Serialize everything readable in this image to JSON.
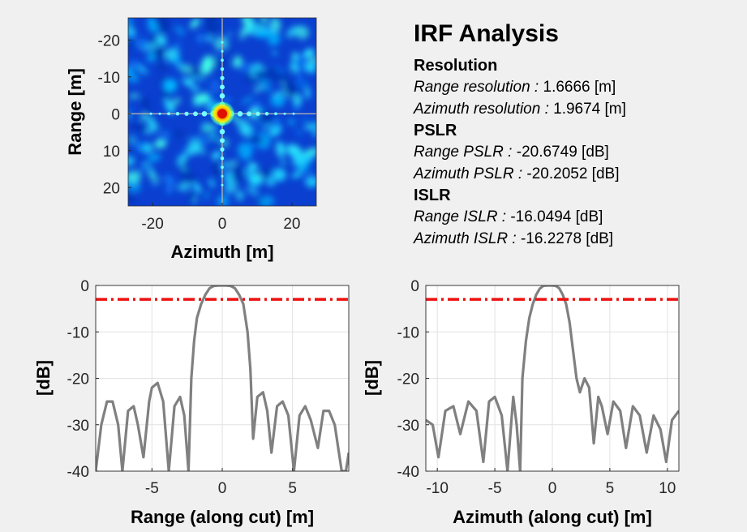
{
  "chart_data": [
    {
      "type": "heatmap",
      "xlabel": "Azimuth [m]",
      "ylabel": "Range [m]",
      "xlim": [
        -27,
        27
      ],
      "ylim": [
        -26,
        25
      ],
      "y_reversed": true,
      "xticks": [
        -20,
        0,
        20
      ],
      "yticks": [
        -20,
        -10,
        0,
        10,
        20
      ],
      "colormap": "jet",
      "peak": [
        0,
        0
      ]
    },
    {
      "type": "line",
      "xlabel": "Range (along cut) [m]",
      "ylabel": "[dB]",
      "xlim": [
        -9,
        9
      ],
      "ylim": [
        -40,
        0
      ],
      "xticks": [
        -5,
        0,
        5
      ],
      "yticks": [
        0,
        -10,
        -20,
        -30,
        -40
      ],
      "grid": true,
      "threshold_db": -3,
      "series": [
        {
          "color": "#808080",
          "x": [
            -9.0,
            -8.6,
            -8.2,
            -7.8,
            -7.4,
            -7.1,
            -6.7,
            -6.3,
            -6.0,
            -5.6,
            -5.2,
            -5.0,
            -4.6,
            -4.2,
            -3.8,
            -3.4,
            -3.0,
            -2.7,
            -2.4,
            -2.2,
            -2.0,
            -1.8,
            -1.5,
            -1.2,
            -0.9,
            -0.6,
            -0.3,
            0.0,
            0.3,
            0.6,
            0.9,
            1.2,
            1.5,
            1.8,
            2.0,
            2.2,
            2.5,
            2.9,
            3.2,
            3.5,
            3.9,
            4.3,
            4.7,
            5.1,
            5.5,
            5.9,
            6.3,
            6.8,
            7.2,
            7.6,
            8.0,
            8.5,
            8.8,
            9.0
          ],
          "y": [
            -40,
            -30,
            -25,
            -25,
            -30,
            -40,
            -27,
            -26,
            -30,
            -37,
            -25,
            -22,
            -21,
            -25,
            -40,
            -26,
            -24,
            -28,
            -40,
            -20,
            -12,
            -7,
            -4,
            -2,
            -0.6,
            -0.1,
            0,
            0,
            0,
            -0.1,
            -0.6,
            -2,
            -4,
            -10,
            -18,
            -33,
            -24,
            -23,
            -27,
            -36,
            -26,
            -25,
            -28,
            -40,
            -28,
            -26,
            -29,
            -35,
            -27,
            -27,
            -30,
            -40,
            -40,
            -36
          ]
        }
      ]
    },
    {
      "type": "line",
      "xlabel": "Azimuth (along cut) [m]",
      "ylabel": "[dB]",
      "xlim": [
        -11,
        11
      ],
      "ylim": [
        -40,
        0
      ],
      "xticks": [
        -10,
        -5,
        0,
        5,
        10
      ],
      "yticks": [
        0,
        -10,
        -20,
        -30,
        -40
      ],
      "grid": true,
      "threshold_db": -3,
      "series": [
        {
          "color": "#808080",
          "x": [
            -11.0,
            -10.4,
            -9.9,
            -9.3,
            -8.6,
            -8.0,
            -7.3,
            -6.6,
            -6.0,
            -5.5,
            -5.0,
            -4.4,
            -3.9,
            -3.4,
            -3.1,
            -2.8,
            -2.6,
            -2.3,
            -2.0,
            -1.7,
            -1.4,
            -1.1,
            -0.8,
            -0.5,
            -0.2,
            0.0,
            0.3,
            0.6,
            0.9,
            1.2,
            1.5,
            1.8,
            2.1,
            2.4,
            2.8,
            3.2,
            3.6,
            4.0,
            4.3,
            4.8,
            5.3,
            5.9,
            6.4,
            7.0,
            7.6,
            8.2,
            8.8,
            9.4,
            9.9,
            10.4,
            11.0
          ],
          "y": [
            -29,
            -30,
            -37,
            -27,
            -26,
            -32,
            -25,
            -27,
            -38,
            -25,
            -24,
            -28,
            -40,
            -24,
            -30,
            -40,
            -20,
            -12,
            -7,
            -4,
            -2,
            -0.7,
            -0.1,
            0,
            0,
            0,
            -0.1,
            -0.6,
            -2,
            -4,
            -8,
            -14,
            -20,
            -23,
            -20,
            -22,
            -34,
            -24,
            -26,
            -32,
            -25,
            -27,
            -35,
            -26,
            -28,
            -36,
            -28,
            -31,
            -38,
            -29,
            -27
          ]
        }
      ]
    }
  ],
  "info": {
    "title": "IRF Analysis",
    "sections": [
      {
        "heading": "Resolution",
        "lines": [
          {
            "label": "Range resolution :",
            "value": "1.6666 [m]"
          },
          {
            "label": "Azimuth resolution :",
            "value": "1.9674 [m]"
          }
        ]
      },
      {
        "heading": "PSLR",
        "lines": [
          {
            "label": "Range PSLR :",
            "value": "-20.6749 [dB]"
          },
          {
            "label": "Azimuth PSLR :",
            "value": "-20.2052 [dB]"
          }
        ]
      },
      {
        "heading": "ISLR",
        "lines": [
          {
            "label": "Range ISLR :",
            "value": "-16.0494 [dB]"
          },
          {
            "label": "Azimuth ISLR :",
            "value": "-16.2278 [dB]"
          }
        ]
      }
    ]
  }
}
